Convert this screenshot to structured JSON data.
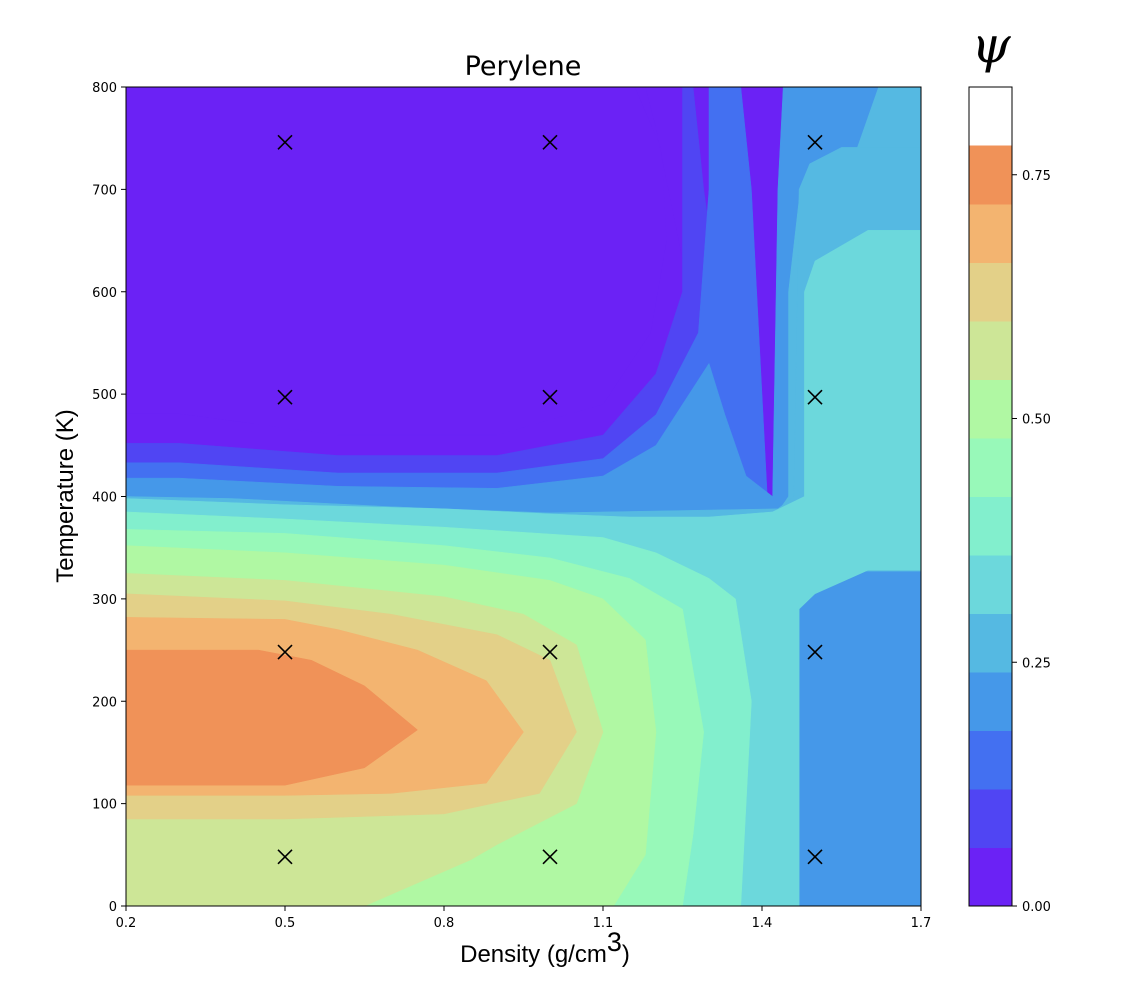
{
  "chart_data": {
    "type": "heatmap",
    "subtype": "filled-contour",
    "title": "Perylene",
    "xlabel": "Density (g/cm",
    "xlabel_superscript": "3",
    "xlabel_suffix": ")",
    "ylabel": "Temperature (K)",
    "colorbar_label": "ψ",
    "xlim": [
      0.2,
      1.7
    ],
    "ylim": [
      0,
      800
    ],
    "x_ticks": [
      "0.2",
      "0.5",
      "0.8",
      "1.1",
      "1.4",
      "1.7"
    ],
    "y_ticks": [
      "0",
      "100",
      "200",
      "300",
      "400",
      "500",
      "600",
      "700",
      "800"
    ],
    "colorbar_ticks": [
      "0.00",
      "0.25",
      "0.50",
      "0.75"
    ],
    "colorbar_range": [
      0.0,
      0.84
    ],
    "colormap": "rainbow",
    "level_step": 0.06,
    "level_colors": [
      "#6b22f5",
      "#5045f3",
      "#4370f1",
      "#4598e9",
      "#55b9e2",
      "#6cd8dc",
      "#82efcd",
      "#98f9b9",
      "#b0f8a3",
      "#cde697",
      "#e3d088",
      "#f3b470",
      "#f09258"
    ],
    "sample_points": [
      {
        "x": 0.5,
        "y": 48
      },
      {
        "x": 1.0,
        "y": 48
      },
      {
        "x": 1.5,
        "y": 48
      },
      {
        "x": 0.5,
        "y": 248
      },
      {
        "x": 1.0,
        "y": 248
      },
      {
        "x": 1.5,
        "y": 248
      },
      {
        "x": 0.5,
        "y": 497
      },
      {
        "x": 1.0,
        "y": 497
      },
      {
        "x": 1.5,
        "y": 497
      },
      {
        "x": 0.5,
        "y": 746
      },
      {
        "x": 1.0,
        "y": 746
      },
      {
        "x": 1.5,
        "y": 746
      }
    ],
    "sample_marker": "x",
    "grid": false
  }
}
